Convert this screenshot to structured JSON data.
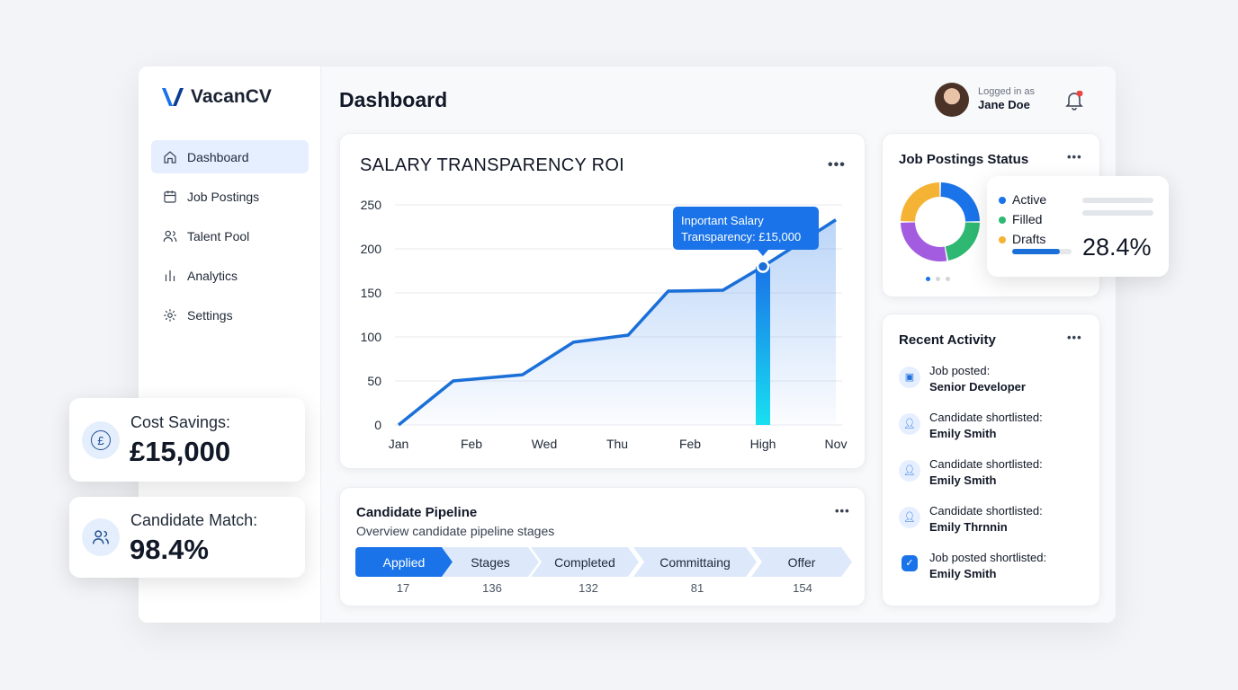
{
  "brand": {
    "name": "VacanCV"
  },
  "sidebar": {
    "items": [
      {
        "label": "Dashboard",
        "icon": "home-icon",
        "active": true
      },
      {
        "label": "Job Postings",
        "icon": "calendar-icon"
      },
      {
        "label": "Talent Pool",
        "icon": "users-icon"
      },
      {
        "label": "Analytics",
        "icon": "bar-chart-icon"
      },
      {
        "label": "Settings",
        "icon": "gear-icon"
      }
    ]
  },
  "header": {
    "title": "Dashboard",
    "logged_in_label": "Logged in as",
    "user_name": "Jane Doe",
    "notification_dot_color": "#ef4444"
  },
  "chart_data": {
    "type": "line",
    "title": "SALARY TRANSPARENCY ROI",
    "categories": [
      "Jan",
      "Feb",
      "Wed",
      "Thu",
      "Feb",
      "High",
      "Nov"
    ],
    "x": [
      0,
      0.75,
      1.7,
      2.4,
      3.15,
      3.7,
      4.45,
      5,
      6
    ],
    "values": [
      0,
      50,
      57,
      94,
      102,
      152,
      153,
      180,
      233
    ],
    "yticks": [
      0,
      50,
      100,
      150,
      200,
      250
    ],
    "ylim": [
      0,
      250
    ],
    "grid": true,
    "highlight": {
      "category": "High",
      "value": 180,
      "tooltip": [
        "Inportant Salary",
        "Transparency: £15,000"
      ]
    },
    "color": "#1a6fd8"
  },
  "job_status": {
    "title": "Job Postings Status",
    "legend": [
      {
        "label": "Active",
        "color": "#1a73e8"
      },
      {
        "label": "Filled",
        "color": "#2eb872"
      },
      {
        "label": "Drafts",
        "color": "#f5b336"
      }
    ],
    "donut": [
      {
        "color": "#1a73e8",
        "value": 25
      },
      {
        "color": "#2eb872",
        "value": 22
      },
      {
        "color": "#a35ce0",
        "value": 28
      },
      {
        "color": "#f5b336",
        "value": 25
      }
    ],
    "percent": "28.4%",
    "progress": 0.8
  },
  "activity": {
    "title": "Recent Activity",
    "items": [
      {
        "line1": "Job posted:",
        "line2": "Senior Developer",
        "icon": "briefcase-icon"
      },
      {
        "line1": "Candidate shortlisted:",
        "line2": "Emily Smith",
        "icon": "user-icon"
      },
      {
        "line1": "Candidate shortlisted:",
        "line2": "Emily Smith",
        "icon": "user-icon"
      },
      {
        "line1": "Candidate shortlisted:",
        "line2": "Emily Thrnnin",
        "icon": "user-icon"
      },
      {
        "line1": "Job posted shortlisted:",
        "line2": "Emily Smith",
        "icon": "check-icon"
      }
    ]
  },
  "pipeline": {
    "title": "Candidate Pipeline",
    "subtitle": "Overview candidate pipeline stages",
    "stages": [
      {
        "label": "Applied",
        "count": "17"
      },
      {
        "label": "Stages",
        "count": "136"
      },
      {
        "label": "Completed",
        "count": "132"
      },
      {
        "label": "Committaing",
        "count": "81"
      },
      {
        "label": "Offer",
        "count": "154"
      }
    ]
  },
  "kpis": [
    {
      "label": "Cost Savings:",
      "value": "£15,000",
      "icon": "pound-icon"
    },
    {
      "label": "Candidate Match:",
      "value": "98.4%",
      "icon": "users-icon"
    }
  ],
  "more_label": "•••"
}
